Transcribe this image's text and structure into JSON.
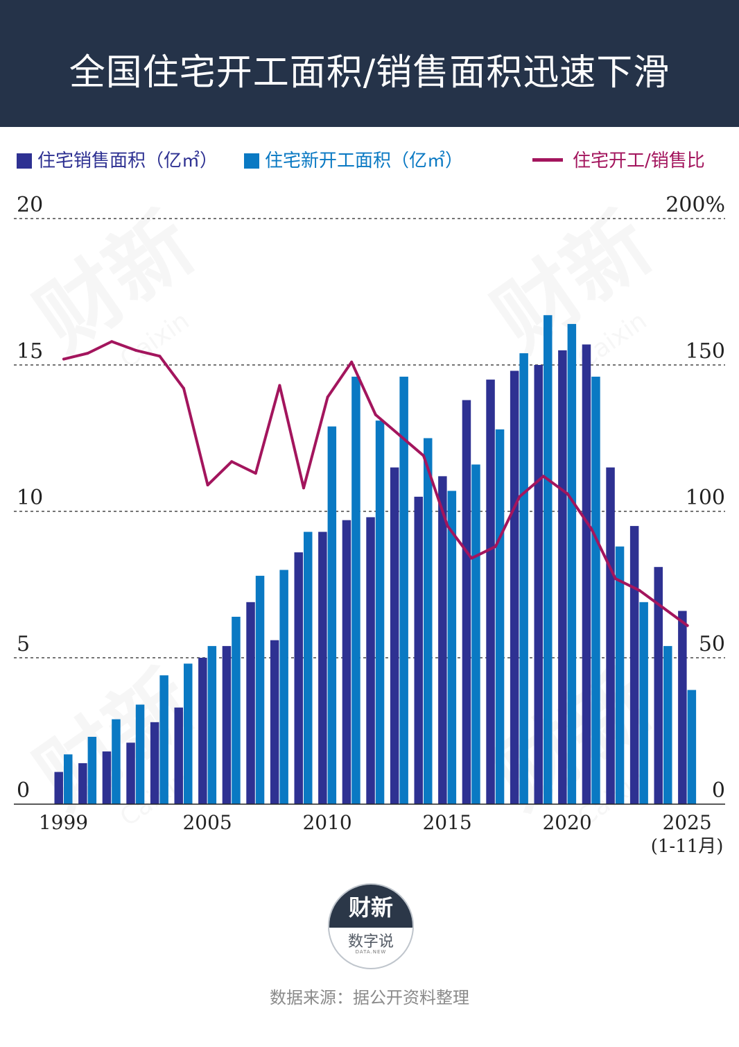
{
  "title": "全国住宅开工面积/销售面积迅速下滑",
  "legend": {
    "sales": "住宅销售面积（亿㎡）",
    "starts": "住宅新开工面积（亿㎡）",
    "ratio": "住宅开工/销售比"
  },
  "colors": {
    "header_bg": "#253349",
    "sales": "#2e3192",
    "starts": "#0a79c3",
    "ratio": "#a3155d"
  },
  "logo": {
    "brand": "财新",
    "name": "数字说",
    "sub": "DATA.NEW"
  },
  "source": "数据来源：据公开资料整理",
  "chart_data": {
    "type": "bar",
    "categories": [
      "1999",
      "2000",
      "2001",
      "2002",
      "2003",
      "2004",
      "2005",
      "2006",
      "2007",
      "2008",
      "2009",
      "2010",
      "2011",
      "2012",
      "2013",
      "2014",
      "2015",
      "2016",
      "2017",
      "2018",
      "2019",
      "2020",
      "2021",
      "2022",
      "2023",
      "2024",
      "2025"
    ],
    "series": [
      {
        "name": "住宅销售面积（亿㎡）",
        "axis": "left",
        "type": "bar",
        "values": [
          1.1,
          1.4,
          1.8,
          2.1,
          2.8,
          3.3,
          5.0,
          5.4,
          6.9,
          5.6,
          8.6,
          9.3,
          9.7,
          9.8,
          11.5,
          10.5,
          11.2,
          13.8,
          14.5,
          14.8,
          15.0,
          15.5,
          15.7,
          11.5,
          9.5,
          8.1,
          6.6
        ]
      },
      {
        "name": "住宅新开工面积（亿㎡）",
        "axis": "left",
        "type": "bar",
        "values": [
          1.7,
          2.3,
          2.9,
          3.4,
          4.4,
          4.8,
          5.4,
          6.4,
          7.8,
          8.0,
          9.3,
          12.9,
          14.6,
          13.1,
          14.6,
          12.5,
          10.7,
          11.6,
          12.8,
          15.4,
          16.7,
          16.4,
          14.6,
          8.8,
          6.9,
          5.4,
          3.9
        ]
      },
      {
        "name": "住宅开工/销售比",
        "axis": "right",
        "type": "line",
        "values": [
          152,
          154,
          158,
          155,
          153,
          142,
          109,
          117,
          113,
          143,
          108,
          139,
          151,
          133,
          126,
          119,
          95,
          84,
          88,
          105,
          112,
          106,
          94,
          77,
          73,
          67,
          61
        ]
      }
    ],
    "x_tick_labels": [
      {
        "category": "1999",
        "text": "1999"
      },
      {
        "category": "2005",
        "text": "2005"
      },
      {
        "category": "2010",
        "text": "2010"
      },
      {
        "category": "2015",
        "text": "2015"
      },
      {
        "category": "2020",
        "text": "2020"
      },
      {
        "category": "2025",
        "text": "2025"
      }
    ],
    "x_note": "(1-11月)",
    "y_left": {
      "ticks": [
        0,
        5,
        10,
        15,
        20
      ],
      "labels": [
        "0",
        "5",
        "10",
        "15",
        "20"
      ],
      "ylim": [
        0,
        20
      ]
    },
    "y_right": {
      "ticks": [
        0,
        50,
        100,
        150,
        200
      ],
      "labels": [
        "0",
        "50",
        "100",
        "150",
        "200%"
      ],
      "ylim": [
        0,
        200
      ]
    },
    "watermark": [
      "财新",
      "Caixin"
    ]
  }
}
